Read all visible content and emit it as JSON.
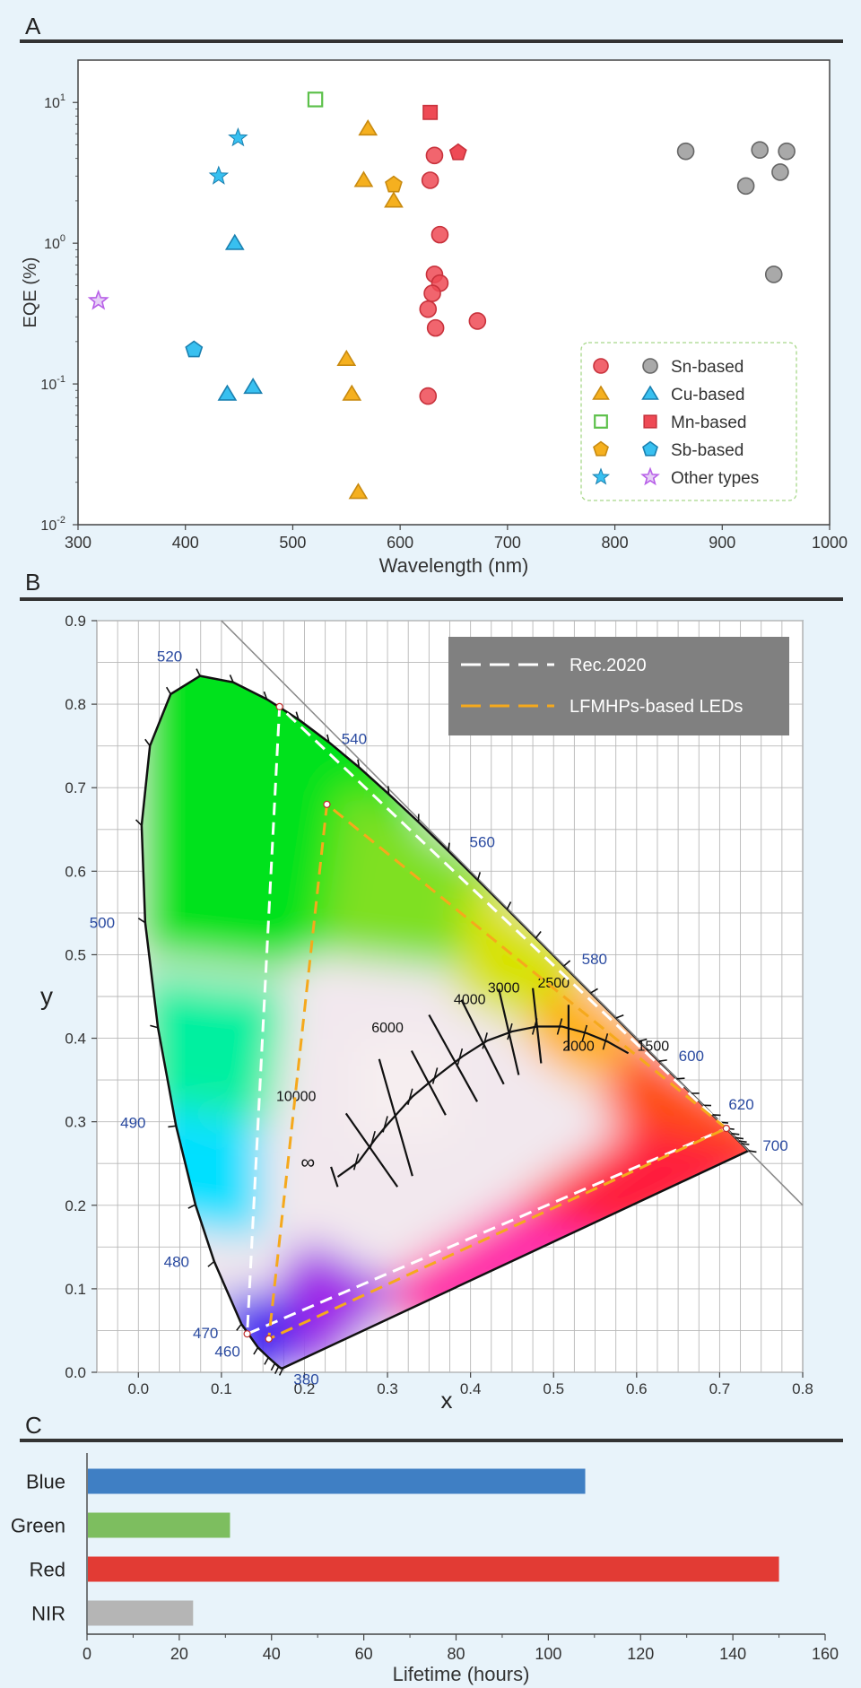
{
  "panels": {
    "a": "A",
    "b": "B",
    "c": "C"
  },
  "chart_data": [
    {
      "type": "scatter",
      "panel": "A",
      "xlabel": "Wavelength (nm)",
      "ylabel": "EQE (%)",
      "xlim": [
        300,
        1000
      ],
      "ylim": [
        0.01,
        20
      ],
      "yscale": "log",
      "xticks": [
        "300",
        "400",
        "500",
        "600",
        "700",
        "800",
        "900",
        "1000"
      ],
      "ytick_values": [
        0.01,
        0.1,
        1,
        10
      ],
      "ytick_exponents": [
        "-2",
        "-1",
        "0",
        "1"
      ],
      "ytick_base": "10",
      "legend": {
        "location": "bottom-right",
        "entries": [
          {
            "label": "Sn-based",
            "shapes": [
              "circle",
              "circle"
            ],
            "colors": [
              "#ee4a55",
              "#9a9a9a"
            ]
          },
          {
            "label": "Cu-based",
            "shapes": [
              "triangle",
              "triangle"
            ],
            "colors": [
              "#f5b01f",
              "#38c0f0"
            ]
          },
          {
            "label": "Mn-based",
            "shapes": [
              "square-open",
              "square"
            ],
            "colors": [
              "#5cc04a",
              "#ee4a55"
            ]
          },
          {
            "label": "Sb-based",
            "shapes": [
              "pentagon",
              "pentagon"
            ],
            "colors": [
              "#f5b01f",
              "#38c0f0"
            ]
          },
          {
            "label": "Other types",
            "shapes": [
              "star",
              "star-open"
            ],
            "colors": [
              "#38c0f0",
              "#b860e8"
            ]
          }
        ]
      },
      "series": [
        {
          "name": "Sn-based (red)",
          "shape": "circle",
          "color": "#ee4a55",
          "points": [
            [
              632,
              4.2
            ],
            [
              628,
              2.8
            ],
            [
              637,
              1.15
            ],
            [
              632,
              0.6
            ],
            [
              637,
              0.52
            ],
            [
              630,
              0.44
            ],
            [
              626,
              0.34
            ],
            [
              633,
              0.25
            ],
            [
              672,
              0.28
            ],
            [
              626,
              0.082
            ]
          ]
        },
        {
          "name": "Sn-based (NIR)",
          "shape": "circle",
          "color": "#9a9a9a",
          "points": [
            [
              866,
              4.5
            ],
            [
              935,
              4.6
            ],
            [
              960,
              4.5
            ],
            [
              954,
              3.2
            ],
            [
              922,
              2.55
            ],
            [
              948,
              0.6
            ]
          ]
        },
        {
          "name": "Cu-based (yellow)",
          "shape": "triangle",
          "color": "#f5b01f",
          "points": [
            [
              570,
              6.5
            ],
            [
              566,
              2.8
            ],
            [
              594,
              2.0
            ],
            [
              550,
              0.15
            ],
            [
              555,
              0.085
            ],
            [
              561,
              0.017
            ]
          ]
        },
        {
          "name": "Cu-based (blue)",
          "shape": "triangle",
          "color": "#38c0f0",
          "points": [
            [
              446,
              1.0
            ],
            [
              463,
              0.095
            ],
            [
              439,
              0.085
            ]
          ]
        },
        {
          "name": "Mn-based (green)",
          "shape": "square-open",
          "color": "#5cc04a",
          "points": [
            [
              521,
              10.5
            ]
          ]
        },
        {
          "name": "Mn-based (red)",
          "shape": "square",
          "color": "#ee4a55",
          "points": [
            [
              628,
              8.5
            ]
          ]
        },
        {
          "name": "Sb-based (yellow)",
          "shape": "pentagon",
          "color": "#f5b01f",
          "points": [
            [
              594,
              2.6
            ]
          ]
        },
        {
          "name": "Sb-based (red)",
          "shape": "pentagon",
          "color": "#ee4a55",
          "points": [
            [
              654,
              4.4
            ]
          ]
        },
        {
          "name": "Sb-based (blue)",
          "shape": "pentagon",
          "color": "#38c0f0",
          "points": [
            [
              408,
              0.175
            ]
          ]
        },
        {
          "name": "Other (blue star)",
          "shape": "star",
          "color": "#38c0f0",
          "points": [
            [
              449,
              5.6
            ],
            [
              431,
              3.0
            ]
          ]
        },
        {
          "name": "Other (purple star)",
          "shape": "star-open",
          "color": "#b860e8",
          "points": [
            [
              319,
              0.39
            ]
          ]
        }
      ]
    },
    {
      "type": "cie-diagram",
      "panel": "B",
      "xlabel": "x",
      "ylabel": "y",
      "xlim": [
        -0.05,
        0.8
      ],
      "ylim": [
        0.0,
        0.9
      ],
      "xticks": [
        "0.0",
        "0.1",
        "0.2",
        "0.3",
        "0.4",
        "0.5",
        "0.6",
        "0.7",
        "0.8"
      ],
      "yticks": [
        "0.0",
        "0.1",
        "0.2",
        "0.3",
        "0.4",
        "0.5",
        "0.6",
        "0.7",
        "0.8",
        "0.9"
      ],
      "wavelength_labels": [
        {
          "text": "380",
          "x": 0.1741,
          "y": 0.005
        },
        {
          "text": "460",
          "x": 0.144,
          "y": 0.0297
        },
        {
          "text": "470",
          "x": 0.1241,
          "y": 0.0578
        },
        {
          "text": "480",
          "x": 0.0913,
          "y": 0.1327
        },
        {
          "text": "490",
          "x": 0.0454,
          "y": 0.295
        },
        {
          "text": "500",
          "x": 0.0082,
          "y": 0.5384
        },
        {
          "text": "520",
          "x": 0.0743,
          "y": 0.8338
        },
        {
          "text": "540",
          "x": 0.2296,
          "y": 0.7543
        },
        {
          "text": "560",
          "x": 0.3731,
          "y": 0.6245
        },
        {
          "text": "580",
          "x": 0.5125,
          "y": 0.4866
        },
        {
          "text": "600",
          "x": 0.627,
          "y": 0.3725
        },
        {
          "text": "620",
          "x": 0.6915,
          "y": 0.3083
        },
        {
          "text": "700",
          "x": 0.7347,
          "y": 0.2653
        }
      ],
      "planckian_labels": [
        "10000",
        "6000",
        "4000",
        "3000",
        "2500",
        "2000",
        "1500",
        "∞"
      ],
      "legend": {
        "location": "top-right",
        "entries": [
          {
            "label": "Rec.2020",
            "color": "#ffffff"
          },
          {
            "label": "LFMHPs-based LEDs",
            "color": "#f5a91c"
          }
        ]
      },
      "series": [
        {
          "name": "Rec.2020",
          "color": "#ffffff",
          "points": [
            [
              0.708,
              0.292
            ],
            [
              0.17,
              0.797
            ],
            [
              0.131,
              0.046
            ]
          ]
        },
        {
          "name": "LFMHPs-based LEDs",
          "color": "#f5a91c",
          "points": [
            [
              0.708,
              0.292
            ],
            [
              0.227,
              0.68
            ],
            [
              0.157,
              0.04
            ]
          ]
        }
      ]
    },
    {
      "type": "bar",
      "orientation": "horizontal",
      "panel": "C",
      "categories": [
        "Blue",
        "Green",
        "Red",
        "NIR"
      ],
      "values": [
        108,
        31,
        150,
        23
      ],
      "colors": [
        "#3f7fc4",
        "#7dbe5f",
        "#e23b34",
        "#b5b5b5"
      ],
      "xlabel": "Lifetime (hours)",
      "xlim": [
        0,
        160
      ],
      "xticks": [
        "0",
        "20",
        "40",
        "60",
        "80",
        "100",
        "120",
        "140",
        "160"
      ]
    }
  ]
}
